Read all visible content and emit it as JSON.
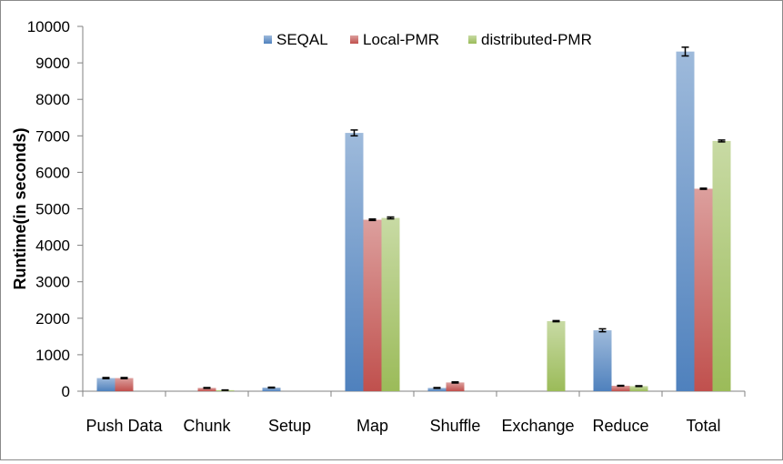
{
  "chart_data": {
    "type": "bar",
    "ylabel": "Runtime(in seconds)",
    "ylim": [
      0,
      10000
    ],
    "y_ticks": [
      0,
      1000,
      2000,
      3000,
      4000,
      5000,
      6000,
      7000,
      8000,
      9000,
      10000
    ],
    "y_tick_labels": [
      "0",
      "1000",
      "2000",
      "3000",
      "4000",
      "5000",
      "6000",
      "7000",
      "8000",
      "9000",
      "10000"
    ],
    "categories": [
      "Push Data",
      "Chunk",
      "Setup",
      "Map",
      "Shuffle",
      "Exchange",
      "Reduce",
      "Total"
    ],
    "legend_position": "top",
    "error_bars": true,
    "series": [
      {
        "name": "SEQAL",
        "color": "#4f81bd",
        "values": [
          360,
          0,
          100,
          7080,
          90,
          0,
          1670,
          9310
        ],
        "errors": [
          15,
          0,
          10,
          80,
          10,
          0,
          40,
          120
        ]
      },
      {
        "name": "Local-PMR",
        "color": "#c0504d",
        "values": [
          360,
          90,
          0,
          4700,
          240,
          0,
          150,
          5550
        ],
        "errors": [
          15,
          10,
          0,
          20,
          15,
          0,
          10,
          15
        ]
      },
      {
        "name": "distributed-PMR",
        "color": "#9bbb59",
        "values": [
          0,
          30,
          0,
          4750,
          0,
          1920,
          140,
          6860
        ],
        "errors": [
          0,
          5,
          0,
          25,
          0,
          15,
          10,
          25
        ]
      }
    ]
  }
}
